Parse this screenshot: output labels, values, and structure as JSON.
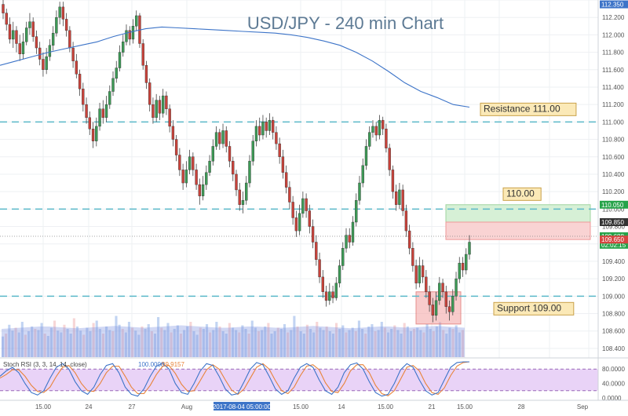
{
  "chart_data": {
    "type": "candlestick",
    "title": "USD/JPY - 240 min Chart",
    "y_range": [
      108.3,
      112.4
    ],
    "y_ticks": [
      "112.400",
      "112.200",
      "112.000",
      "111.800",
      "111.600",
      "111.400",
      "111.200",
      "111.000",
      "110.800",
      "110.600",
      "110.400",
      "110.200",
      "110.000",
      "109.800",
      "109.600",
      "109.400",
      "109.200",
      "109.000",
      "108.800",
      "108.600",
      "108.400"
    ],
    "x_ticks": [
      "15.00",
      "24",
      "27",
      "Aug",
      "15.00",
      "14",
      "15.00",
      "21",
      "15.00",
      "28",
      "Sep"
    ],
    "x_highlight": "2017-08-04 05:00:00",
    "price_badges": [
      {
        "text": "112.350",
        "price": 112.35,
        "color": "#3d74c8"
      },
      {
        "text": "110.050",
        "price": 110.05,
        "color": "#27a34a"
      },
      {
        "text": "109.850",
        "price": 109.85,
        "color": "#333333"
      },
      {
        "text": "109.688",
        "price": 109.688,
        "color": "#27a34a"
      },
      {
        "text": "02:02:15",
        "price": 109.59,
        "color": "#27a34a"
      },
      {
        "text": "109.650",
        "price": 109.65,
        "color": "#d64541"
      }
    ],
    "levels": [
      {
        "label": "Resistance 111.00",
        "price": 111.0
      },
      {
        "label": "110.00",
        "price": 110.0
      },
      {
        "label": "Support 109.00",
        "price": 109.0
      }
    ],
    "target_zone": [
      109.85,
      110.05
    ],
    "stop_zone": [
      109.65,
      109.85
    ],
    "demand_zone": [
      108.68,
      109.05
    ],
    "candles": [
      [
        112.35,
        112.25,
        112.42,
        112.18
      ],
      [
        112.25,
        112.12,
        112.3,
        112.05
      ],
      [
        112.12,
        111.95,
        112.2,
        111.9
      ],
      [
        111.95,
        112.05,
        112.15,
        111.85
      ],
      [
        112.05,
        111.9,
        112.1,
        111.8
      ],
      [
        111.9,
        111.78,
        112.0,
        111.7
      ],
      [
        111.78,
        111.92,
        112.02,
        111.72
      ],
      [
        111.92,
        112.08,
        112.15,
        111.88
      ],
      [
        112.08,
        112.15,
        112.25,
        112.0
      ],
      [
        112.15,
        111.98,
        112.2,
        111.92
      ],
      [
        111.98,
        111.85,
        112.05,
        111.78
      ],
      [
        111.85,
        111.72,
        111.92,
        111.65
      ],
      [
        111.72,
        111.6,
        111.8,
        111.52
      ],
      [
        111.6,
        111.75,
        111.85,
        111.55
      ],
      [
        111.75,
        111.88,
        111.95,
        111.7
      ],
      [
        111.88,
        112.02,
        112.1,
        111.82
      ],
      [
        112.02,
        112.2,
        112.28,
        111.98
      ],
      [
        112.2,
        112.32,
        112.38,
        112.12
      ],
      [
        112.32,
        112.18,
        112.38,
        112.1
      ],
      [
        112.18,
        112.05,
        112.25,
        111.98
      ],
      [
        112.05,
        111.85,
        112.1,
        111.8
      ],
      [
        111.85,
        111.7,
        111.92,
        111.62
      ],
      [
        111.7,
        111.55,
        111.78,
        111.5
      ],
      [
        111.55,
        111.38,
        111.6,
        111.3
      ],
      [
        111.38,
        111.2,
        111.45,
        111.12
      ],
      [
        111.2,
        111.05,
        111.28,
        110.98
      ],
      [
        111.05,
        110.92,
        111.12,
        110.85
      ],
      [
        110.92,
        110.78,
        111.0,
        110.7
      ],
      [
        110.78,
        110.95,
        111.05,
        110.72
      ],
      [
        110.95,
        111.15,
        111.22,
        110.9
      ],
      [
        111.15,
        111.05,
        111.25,
        110.98
      ],
      [
        111.05,
        111.2,
        111.3,
        111.0
      ],
      [
        111.2,
        111.35,
        111.42,
        111.15
      ],
      [
        111.35,
        111.5,
        111.58,
        111.3
      ],
      [
        111.5,
        111.62,
        111.7,
        111.45
      ],
      [
        111.62,
        111.8,
        111.88,
        111.58
      ],
      [
        111.8,
        111.92,
        112.0,
        111.75
      ],
      [
        111.92,
        112.05,
        112.12,
        111.88
      ],
      [
        112.05,
        111.95,
        112.1,
        111.88
      ],
      [
        111.95,
        112.1,
        112.18,
        111.9
      ],
      [
        112.1,
        112.22,
        112.28,
        112.05
      ],
      [
        112.22,
        111.9,
        112.25,
        111.85
      ],
      [
        111.9,
        111.65,
        111.95,
        111.6
      ],
      [
        111.65,
        111.45,
        111.7,
        111.38
      ],
      [
        111.45,
        111.2,
        111.5,
        111.12
      ],
      [
        111.2,
        111.05,
        111.28,
        110.98
      ],
      [
        111.05,
        111.25,
        111.32,
        111.0
      ],
      [
        111.25,
        111.1,
        111.3,
        111.02
      ],
      [
        111.1,
        111.3,
        111.38,
        111.05
      ],
      [
        111.3,
        111.15,
        111.35,
        111.08
      ],
      [
        111.15,
        110.95,
        111.2,
        110.88
      ],
      [
        110.95,
        110.8,
        111.02,
        110.72
      ],
      [
        110.8,
        110.62,
        110.85,
        110.55
      ],
      [
        110.62,
        110.45,
        110.7,
        110.38
      ],
      [
        110.45,
        110.3,
        110.52,
        110.22
      ],
      [
        110.3,
        110.45,
        110.55,
        110.25
      ],
      [
        110.45,
        110.6,
        110.68,
        110.4
      ],
      [
        110.6,
        110.45,
        110.65,
        110.38
      ],
      [
        110.45,
        110.28,
        110.52,
        110.22
      ],
      [
        110.28,
        110.15,
        110.35,
        110.05
      ],
      [
        110.15,
        110.28,
        110.38,
        110.1
      ],
      [
        110.28,
        110.42,
        110.5,
        110.22
      ],
      [
        110.42,
        110.55,
        110.62,
        110.38
      ],
      [
        110.55,
        110.72,
        110.8,
        110.5
      ],
      [
        110.72,
        110.88,
        110.95,
        110.68
      ],
      [
        110.88,
        110.75,
        110.92,
        110.68
      ],
      [
        110.75,
        110.9,
        110.98,
        110.7
      ],
      [
        110.9,
        110.72,
        110.95,
        110.65
      ],
      [
        110.72,
        110.55,
        110.78,
        110.48
      ],
      [
        110.55,
        110.4,
        110.6,
        110.32
      ],
      [
        110.4,
        110.22,
        110.45,
        110.15
      ],
      [
        110.22,
        110.05,
        110.3,
        109.98
      ],
      [
        110.05,
        110.1,
        110.2,
        109.95
      ],
      [
        110.1,
        110.3,
        110.38,
        110.05
      ],
      [
        110.3,
        110.55,
        110.62,
        110.25
      ],
      [
        110.55,
        110.78,
        110.85,
        110.5
      ],
      [
        110.78,
        110.95,
        111.02,
        110.72
      ],
      [
        110.95,
        110.85,
        111.05,
        110.78
      ],
      [
        110.85,
        111.0,
        111.08,
        110.8
      ],
      [
        111.0,
        110.9,
        111.05,
        110.82
      ],
      [
        110.9,
        111.02,
        111.1,
        110.85
      ],
      [
        111.02,
        110.88,
        111.06,
        110.8
      ],
      [
        110.88,
        110.75,
        110.95,
        110.68
      ],
      [
        110.75,
        110.6,
        110.82,
        110.52
      ],
      [
        110.6,
        110.42,
        110.68,
        110.35
      ],
      [
        110.42,
        110.25,
        110.5,
        110.18
      ],
      [
        110.25,
        110.08,
        110.32,
        110.0
      ],
      [
        110.08,
        109.9,
        110.15,
        109.82
      ],
      [
        109.9,
        109.75,
        109.98,
        109.68
      ],
      [
        109.75,
        109.95,
        110.05,
        109.7
      ],
      [
        109.95,
        110.12,
        110.2,
        109.9
      ],
      [
        110.12,
        109.98,
        110.18,
        109.9
      ],
      [
        109.98,
        109.8,
        110.05,
        109.72
      ],
      [
        109.8,
        109.62,
        109.88,
        109.55
      ],
      [
        109.62,
        109.42,
        109.7,
        109.35
      ],
      [
        109.42,
        109.22,
        109.5,
        109.15
      ],
      [
        109.22,
        109.05,
        109.3,
        108.98
      ],
      [
        109.05,
        108.95,
        109.12,
        108.88
      ],
      [
        108.95,
        109.05,
        109.15,
        108.9
      ],
      [
        109.05,
        108.98,
        109.12,
        108.92
      ],
      [
        108.98,
        109.15,
        109.22,
        108.95
      ],
      [
        109.15,
        109.35,
        109.42,
        109.1
      ],
      [
        109.35,
        109.55,
        109.62,
        109.3
      ],
      [
        109.55,
        109.7,
        109.78,
        109.5
      ],
      [
        109.7,
        109.62,
        109.78,
        109.55
      ],
      [
        109.62,
        109.85,
        109.92,
        109.58
      ],
      [
        109.85,
        110.1,
        110.18,
        109.8
      ],
      [
        110.1,
        110.3,
        110.38,
        110.05
      ],
      [
        110.3,
        110.5,
        110.58,
        110.25
      ],
      [
        110.5,
        110.72,
        110.8,
        110.45
      ],
      [
        110.72,
        110.88,
        110.95,
        110.68
      ],
      [
        110.88,
        110.95,
        111.02,
        110.82
      ],
      [
        110.95,
        110.85,
        111.0,
        110.78
      ],
      [
        110.85,
        111.02,
        111.08,
        110.8
      ],
      [
        111.02,
        110.92,
        111.06,
        110.85
      ],
      [
        110.92,
        110.7,
        110.98,
        110.65
      ],
      [
        110.7,
        110.45,
        110.75,
        110.38
      ],
      [
        110.45,
        110.2,
        110.5,
        110.12
      ],
      [
        110.2,
        110.05,
        110.28,
        109.98
      ],
      [
        110.05,
        110.22,
        110.3,
        110.0
      ],
      [
        110.22,
        109.98,
        110.28,
        109.92
      ],
      [
        109.98,
        109.75,
        110.05,
        109.68
      ],
      [
        109.75,
        109.55,
        109.82,
        109.48
      ],
      [
        109.55,
        109.35,
        109.62,
        109.28
      ],
      [
        109.35,
        109.15,
        109.42,
        109.08
      ],
      [
        109.15,
        109.35,
        109.45,
        109.1
      ],
      [
        109.35,
        109.22,
        109.42,
        109.15
      ],
      [
        109.22,
        109.05,
        109.3,
        108.98
      ],
      [
        109.05,
        108.9,
        109.12,
        108.82
      ],
      [
        108.9,
        108.78,
        108.98,
        108.7
      ],
      [
        108.78,
        108.95,
        109.05,
        108.72
      ],
      [
        108.95,
        109.15,
        109.22,
        108.9
      ],
      [
        109.15,
        109.05,
        109.2,
        108.98
      ],
      [
        109.05,
        108.88,
        109.12,
        108.8
      ],
      [
        108.88,
        108.82,
        108.95,
        108.72
      ],
      [
        108.82,
        109.0,
        109.08,
        108.78
      ],
      [
        109.0,
        109.2,
        109.28,
        108.95
      ],
      [
        109.2,
        109.38,
        109.45,
        109.15
      ],
      [
        109.38,
        109.3,
        109.45,
        109.22
      ],
      [
        109.3,
        109.48,
        109.55,
        109.25
      ],
      [
        109.48,
        109.62,
        109.7,
        109.42
      ]
    ],
    "ma_y": [
      111.65,
      111.7,
      111.75,
      111.8,
      111.84,
      111.88,
      111.92,
      111.98,
      112.03,
      112.07,
      112.09,
      112.08,
      112.07,
      112.06,
      112.05,
      112.04,
      112.03,
      112.02,
      112.0,
      111.97,
      111.93,
      111.88,
      111.8,
      111.7,
      111.58,
      111.45,
      111.35,
      111.28,
      111.2,
      111.17
    ],
    "stoch_rsi": {
      "label": "Stoch RSI (3, 3, 14, 14, close)",
      "k_value": "100.0000",
      "d_value": "99.9157",
      "k_color": "#3d74c8",
      "d_color": "#e8843a",
      "ticks": [
        "80.0000",
        "40.0000",
        "0.0000"
      ],
      "k": [
        60,
        75,
        85,
        70,
        40,
        15,
        8,
        20,
        55,
        85,
        95,
        80,
        45,
        20,
        10,
        30,
        65,
        90,
        95,
        70,
        30,
        10,
        5,
        25,
        60,
        88,
        96,
        80,
        40,
        15,
        10,
        40,
        75,
        95,
        90,
        60,
        25,
        8,
        12,
        45,
        80,
        98,
        92,
        60,
        25,
        10,
        20,
        55,
        85,
        95,
        85,
        50,
        20,
        10,
        30,
        70,
        92,
        97,
        80,
        45,
        15,
        5,
        10,
        40,
        78,
        95,
        85,
        50,
        20,
        8,
        15,
        50,
        85,
        98,
        100,
        100
      ],
      "d": [
        55,
        65,
        78,
        78,
        60,
        35,
        18,
        15,
        30,
        60,
        85,
        90,
        70,
        40,
        20,
        18,
        40,
        70,
        88,
        88,
        60,
        30,
        12,
        12,
        35,
        65,
        88,
        90,
        68,
        38,
        18,
        20,
        48,
        78,
        92,
        80,
        50,
        22,
        10,
        25,
        55,
        85,
        95,
        80,
        48,
        20,
        12,
        30,
        62,
        88,
        92,
        78,
        42,
        18,
        15,
        40,
        75,
        92,
        92,
        70,
        35,
        12,
        6,
        20,
        52,
        85,
        90,
        75,
        40,
        15,
        10,
        28,
        62,
        88,
        98,
        99.9
      ]
    },
    "volume": [
      35,
      40,
      55,
      45,
      50,
      42,
      60,
      38,
      44,
      52,
      48,
      46,
      58,
      40,
      36,
      50,
      62,
      45,
      42,
      55,
      48,
      40,
      66,
      52,
      45,
      38,
      50,
      44,
      58,
      62,
      48,
      40,
      52,
      46,
      44,
      70,
      55,
      48,
      42,
      60,
      50,
      45,
      38,
      52,
      48,
      56,
      44,
      40,
      68,
      50,
      46,
      58,
      42,
      48,
      54,
      40,
      46,
      52,
      60,
      44,
      38,
      50,
      48,
      56,
      42,
      46,
      60,
      52,
      44,
      40,
      58,
      50,
      46,
      42,
      54,
      48,
      40,
      62,
      50,
      44,
      46,
      52,
      58,
      40,
      44,
      50,
      48,
      56,
      42,
      46,
      70,
      52,
      44,
      40,
      55,
      48,
      42,
      60,
      50,
      46,
      52,
      44,
      40,
      58,
      48,
      54,
      42,
      46,
      50,
      44,
      62,
      48,
      40,
      52,
      56,
      44,
      46,
      60,
      50,
      42,
      48,
      54,
      46,
      40,
      58,
      52,
      44,
      48,
      50,
      46,
      42,
      56,
      48,
      44,
      52,
      60,
      46,
      40,
      50,
      48,
      54,
      42,
      46
    ],
    "volume_ma": [
      48,
      49,
      50,
      51,
      52,
      52,
      51,
      50,
      49,
      50,
      51,
      52,
      53,
      52,
      51,
      50,
      51,
      52,
      53,
      54,
      53,
      52,
      51,
      50,
      50,
      51,
      52,
      52,
      51,
      50,
      50,
      51,
      52,
      53,
      52,
      51,
      50,
      49,
      50,
      51,
      52,
      52,
      51,
      50,
      51,
      52,
      53,
      52,
      51,
      50
    ]
  }
}
